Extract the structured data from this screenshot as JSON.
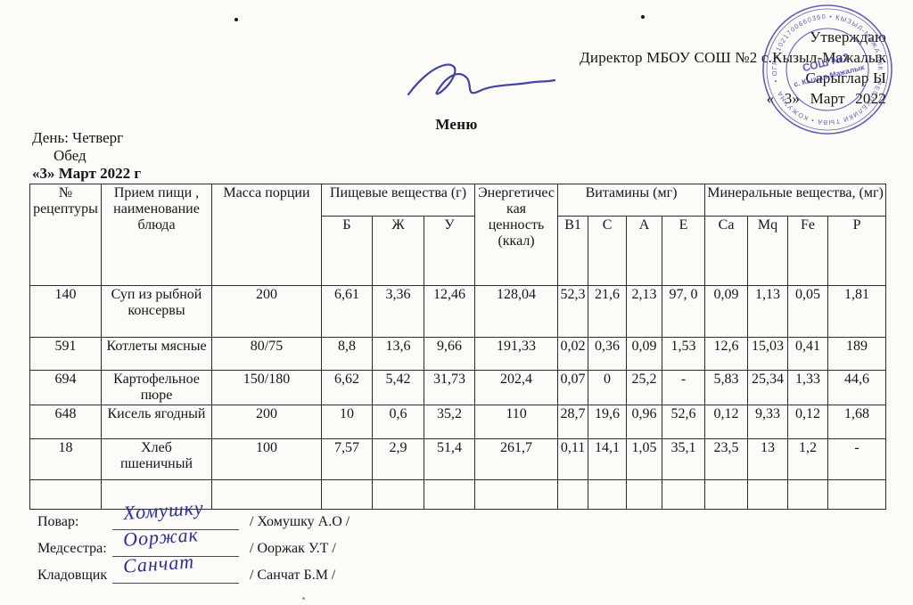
{
  "approval": {
    "line1": "Утверждаю",
    "line2": "Директор МБОУ СОШ №2 с.Кызыл-Мажалык",
    "line3": "Сарыглар Ы",
    "line4": "« 3» Март 2022"
  },
  "stamp": {
    "ring_text": "• ОГРН 1021700660360 • КЫЗЫЛ-МАЖАЛЫК • РЕСПУБЛИКИ ТЫВА • КОЖУУНА",
    "center_line1": "СОШ №2",
    "center_line2": "с. Кызыл-Мажалык",
    "color": "#3d3daa"
  },
  "title": "Меню",
  "meta": {
    "day": "День: Четверг",
    "meal": "Обед",
    "date": "«3» Март 2022 г"
  },
  "table": {
    "headers": {
      "recipe_no": "№ рецептуры",
      "dish": "Прием пищи , наименование блюда",
      "portion": "Масса порции",
      "nutrients_group": "Пищевые вещества (г)",
      "energy": "Энергетическая ценность (ккал)",
      "vitamins_group": "Витамины (мг)",
      "minerals_group": "Минеральные вещества, (мг)",
      "sub": [
        "Б",
        "Ж",
        "У",
        "B1",
        "C",
        "A",
        "E",
        "Ca",
        "Mq",
        "Fe",
        "P"
      ]
    },
    "rows": [
      [
        "140",
        "Суп из рыбной консервы",
        "200",
        "6,61",
        "3,36",
        "12,46",
        "128,04",
        "52,3",
        "21,6",
        "2,13",
        "97, 0",
        "0,09",
        "1,13",
        "0,05",
        "1,81"
      ],
      [
        "591",
        "Котлеты мясные",
        "80/75",
        "8,8",
        "13,6",
        "9,66",
        "191,33",
        "0,02",
        "0,36",
        "0,09",
        "1,53",
        "12,6",
        "15,03",
        "0,41",
        "189"
      ],
      [
        "694",
        "Картофельное пюре",
        "150/180",
        "6,62",
        "5,42",
        "31,73",
        "202,4",
        "0,07",
        "0",
        "25,2",
        "-",
        "5,83",
        "25,34",
        "1,33",
        "44,6"
      ],
      [
        "648",
        "Кисель ягодный",
        "200",
        "10",
        "0,6",
        "35,2",
        "110",
        "28,7",
        "19,6",
        "0,96",
        "52,6",
        "0,12",
        "9,33",
        "0,12",
        "1,68"
      ],
      [
        "18",
        "Хлеб пшеничный",
        "100",
        "7,57",
        "2,9",
        "51,4",
        "261,7",
        "0,11",
        "14,1",
        "1,05",
        "35,1",
        "23,5",
        "13",
        "1,2",
        "-"
      ],
      [
        "",
        "",
        "",
        "",
        "",
        "",
        "",
        "",
        "",
        "",
        "",
        "",
        "",
        "",
        ""
      ]
    ]
  },
  "signatures": [
    {
      "role": "Повар:",
      "script": "Хомушку",
      "name": "/ Хомушку А.О /"
    },
    {
      "role": "Медсестра:",
      "script": "Ооржак",
      "name": "/ Ооржак У.Т /"
    },
    {
      "role": "Кладовщик",
      "script": "Санчат",
      "name": "/ Санчат Б.М /"
    }
  ]
}
